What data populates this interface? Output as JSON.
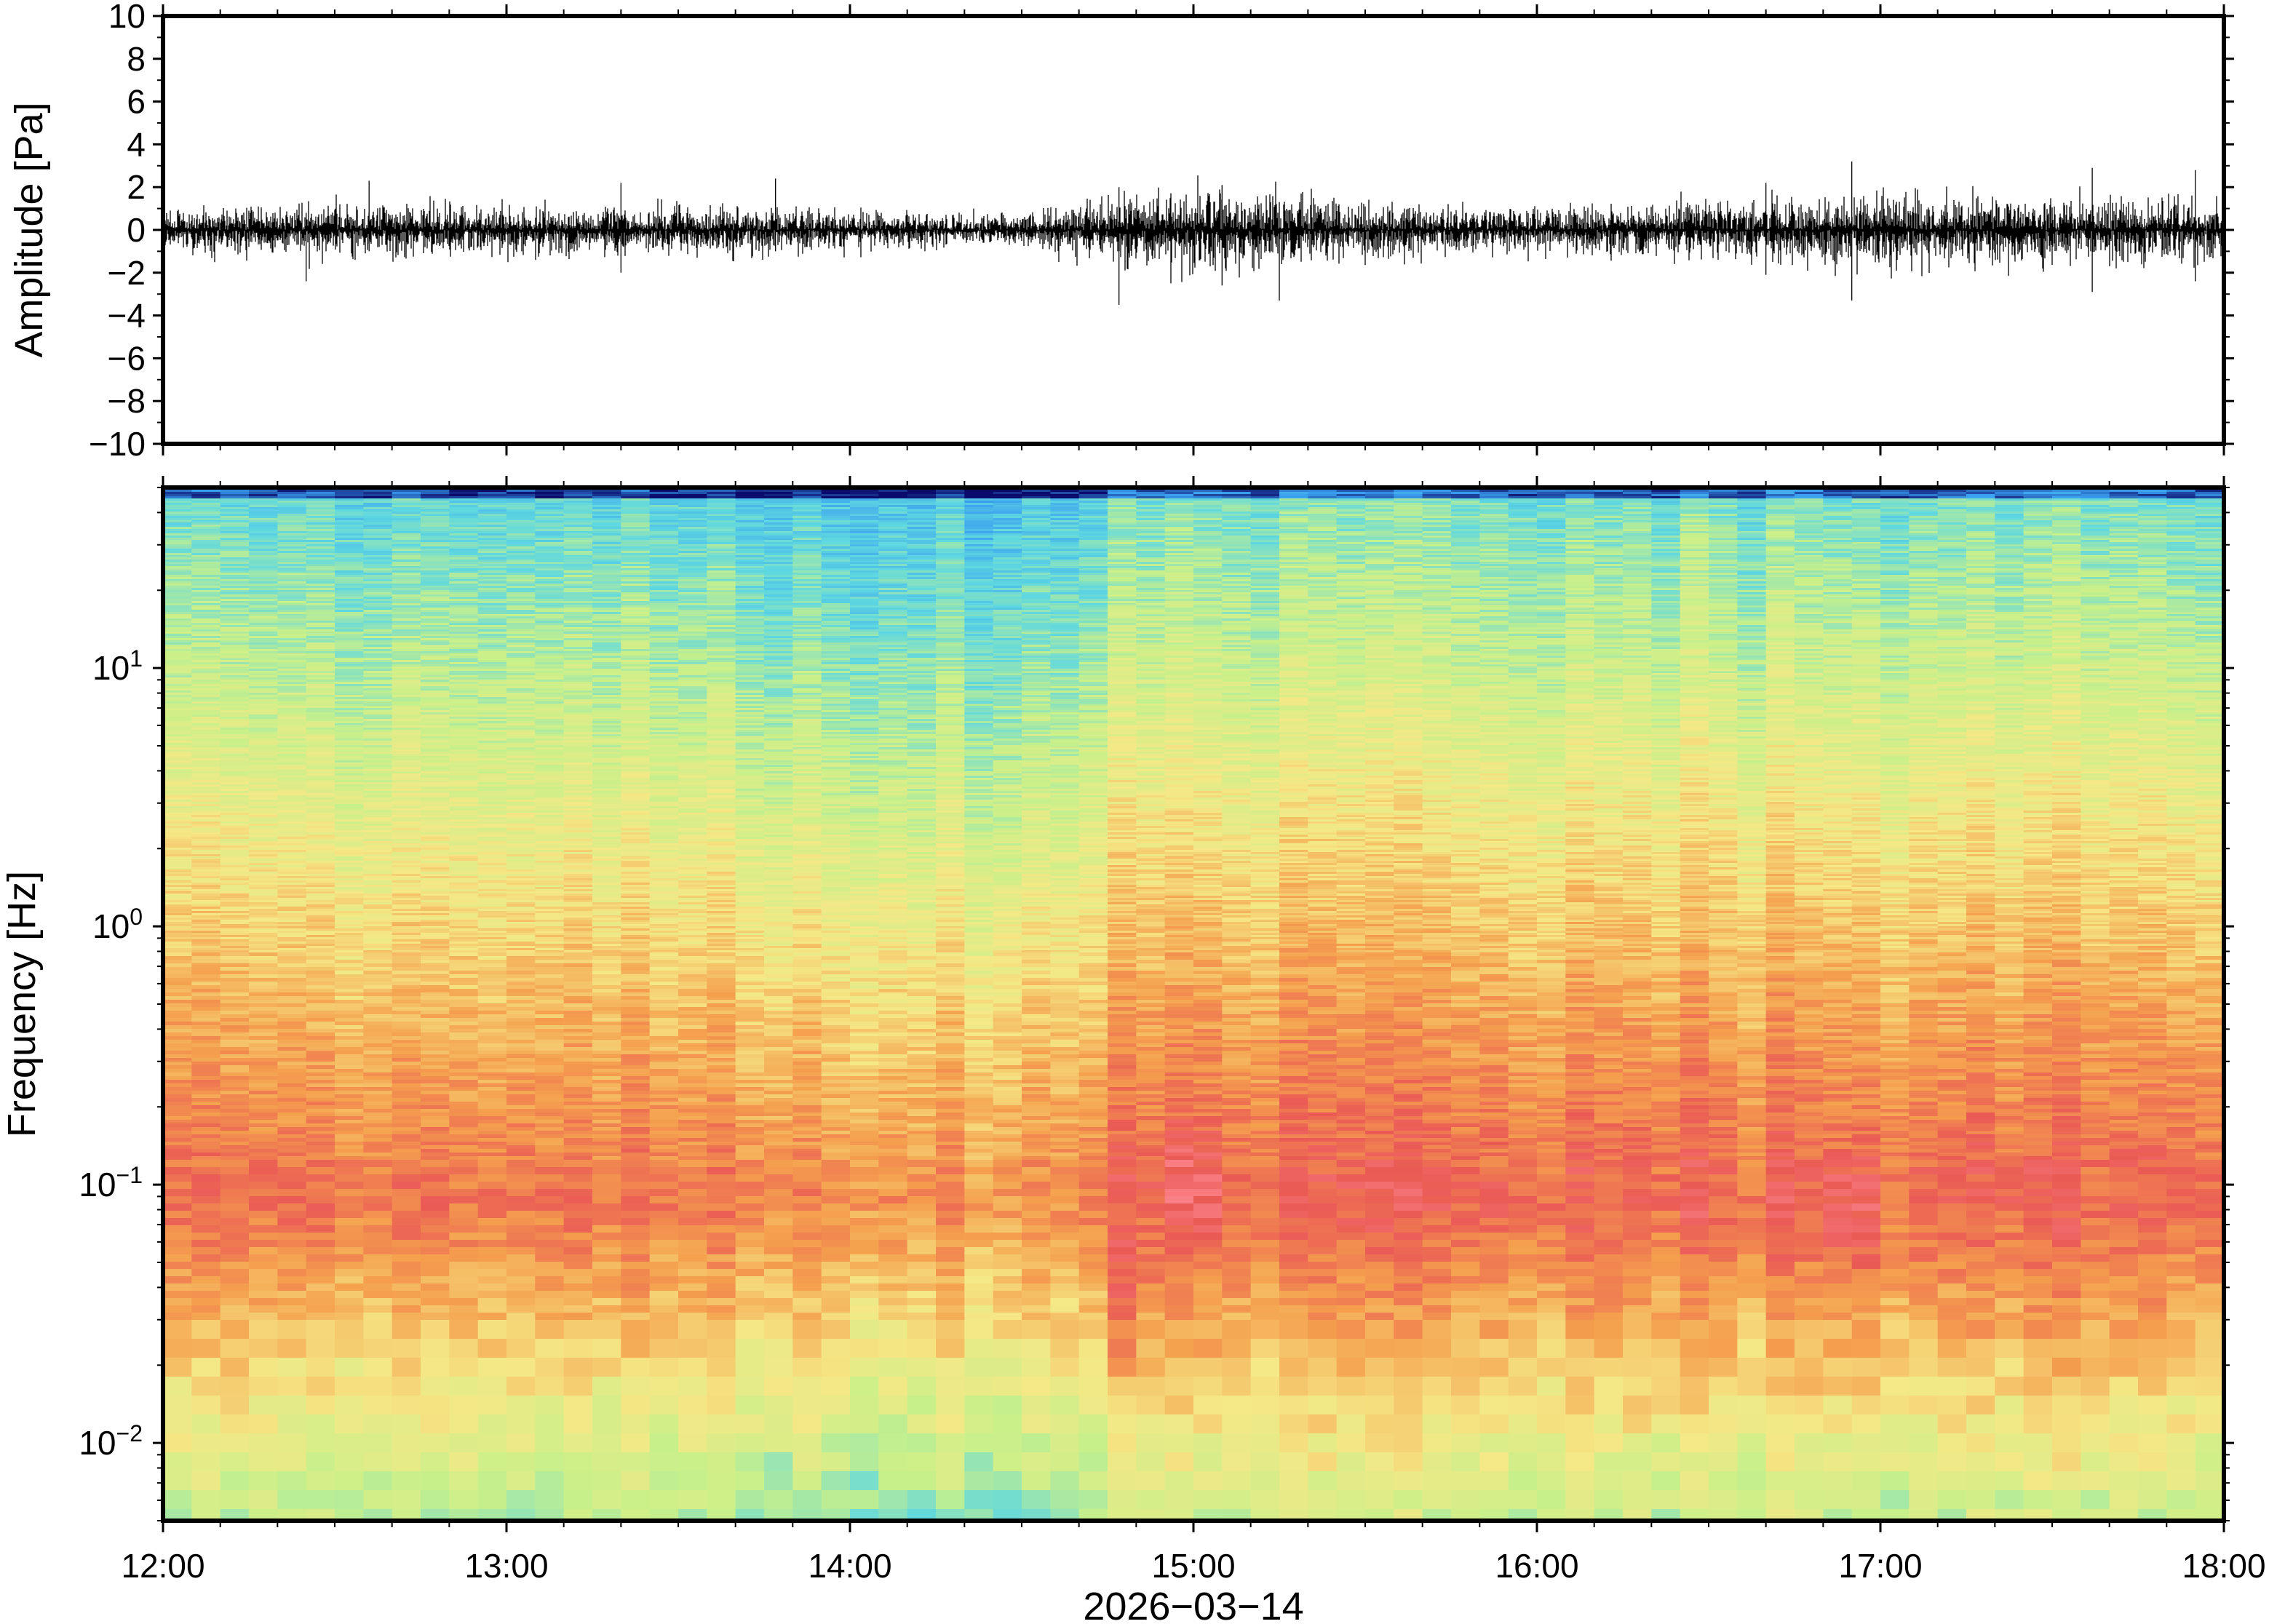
{
  "chart_data": [
    {
      "type": "line",
      "panel": "waveform",
      "ylabel": "Amplitude [Pa]",
      "ylim": [
        -10,
        10
      ],
      "yticks": [
        {
          "value": 10,
          "label": "10"
        },
        {
          "value": 8,
          "label": "8"
        },
        {
          "value": 6,
          "label": "6"
        },
        {
          "value": 4,
          "label": "4"
        },
        {
          "value": 2,
          "label": "2"
        },
        {
          "value": 0,
          "label": "0"
        },
        {
          "value": -2,
          "label": "−2"
        },
        {
          "value": -4,
          "label": "−4"
        },
        {
          "value": -6,
          "label": "−6"
        },
        {
          "value": -8,
          "label": "−8"
        },
        {
          "value": -10,
          "label": "−10"
        }
      ],
      "x_range": [
        "12:00",
        "18:00"
      ],
      "envelope": {
        "times": [
          "12:00",
          "12:15",
          "12:30",
          "12:45",
          "13:00",
          "13:15",
          "13:30",
          "13:45",
          "14:00",
          "14:15",
          "14:30",
          "14:45",
          "15:00",
          "15:15",
          "15:30",
          "15:45",
          "16:00",
          "16:15",
          "16:30",
          "16:45",
          "17:00",
          "17:15",
          "17:30",
          "17:45",
          "18:00"
        ],
        "amplitude_pa": [
          1.0,
          1.0,
          1.1,
          1.1,
          1.0,
          1.0,
          1.0,
          0.9,
          0.8,
          0.7,
          0.6,
          1.4,
          1.6,
          1.4,
          1.2,
          1.0,
          1.0,
          1.1,
          1.2,
          1.3,
          1.5,
          1.4,
          1.3,
          1.3,
          1.2
        ]
      },
      "spikes": [
        {
          "time": "12:25",
          "max": 0.8,
          "min": -2.4
        },
        {
          "time": "12:36",
          "max": 2.3,
          "min": -1.0
        },
        {
          "time": "13:20",
          "max": 2.2,
          "min": -2.0
        },
        {
          "time": "13:47",
          "max": 2.4,
          "min": -1.0
        },
        {
          "time": "14:47",
          "max": 2.0,
          "min": -3.5
        },
        {
          "time": "15:05",
          "max": 2.1,
          "min": -2.6
        },
        {
          "time": "15:15",
          "max": 1.3,
          "min": -3.3
        },
        {
          "time": "16:40",
          "max": 2.2,
          "min": -2.1
        },
        {
          "time": "16:55",
          "max": 3.2,
          "min": -3.3
        },
        {
          "time": "17:37",
          "max": 2.9,
          "min": -2.9
        },
        {
          "time": "17:55",
          "max": 2.8,
          "min": -2.4
        }
      ]
    },
    {
      "type": "heatmap",
      "panel": "spectrogram",
      "ylabel": "Frequency [Hz]",
      "yscale": "log",
      "ylim": [
        0.005,
        50
      ],
      "yticks": [
        {
          "value": 10,
          "base": "10",
          "exp": "1"
        },
        {
          "value": 1,
          "base": "10",
          "exp": "0"
        },
        {
          "value": 0.1,
          "base": "10",
          "exp": "−1"
        },
        {
          "value": 0.01,
          "base": "10",
          "exp": "−2"
        }
      ],
      "xlabel": "2026−03−14",
      "x_range": [
        "12:00",
        "18:00"
      ],
      "xticks": [
        "12:00",
        "13:00",
        "14:00",
        "15:00",
        "16:00",
        "17:00",
        "18:00"
      ],
      "colormap": "rainbow",
      "colors": {
        "low": "#0b0b6b",
        "cool": "#3aa0f0",
        "cyan": "#5fd8e0",
        "green": "#c8f08a",
        "yellow": "#f5e886",
        "orange": "#f5a04e",
        "red": "#ea5a55",
        "high": "#ff8c96"
      },
      "peak_band_hz": [
        0.03,
        0.25
      ],
      "notable_bursts": [
        {
          "time": "14:48",
          "freq_hz": 0.035,
          "level": "high"
        },
        {
          "time": "15:00",
          "freq_hz": 0.1,
          "level": "high"
        },
        {
          "time": "16:55",
          "freq_hz": 0.07,
          "level": "high"
        }
      ]
    }
  ]
}
